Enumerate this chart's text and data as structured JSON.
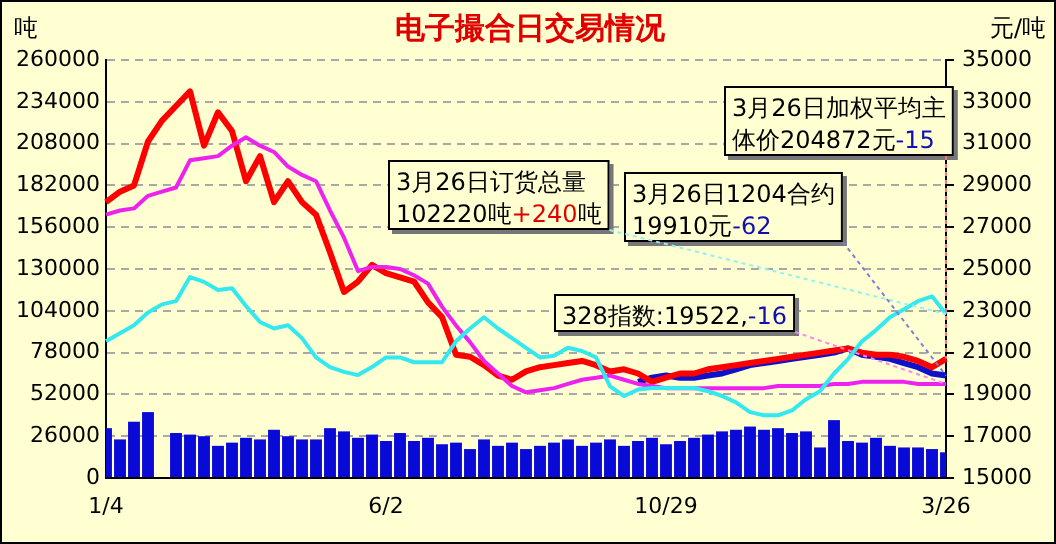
{
  "chart_data": {
    "type": "line",
    "title": "电子撮合日交易情况",
    "ylabel": "吨",
    "y2label": "元/吨",
    "categories": [
      "1/4",
      null,
      null,
      null,
      null,
      null,
      null,
      null,
      null,
      null,
      null,
      null,
      null,
      null,
      null,
      null,
      null,
      null,
      null,
      null,
      "6/2",
      null,
      null,
      null,
      null,
      null,
      null,
      null,
      null,
      null,
      null,
      null,
      null,
      null,
      null,
      null,
      null,
      null,
      null,
      null,
      "10/29",
      null,
      null,
      null,
      null,
      null,
      null,
      null,
      null,
      null,
      null,
      null,
      null,
      null,
      null,
      null,
      null,
      null,
      null,
      null,
      "3/26"
    ],
    "series": [
      {
        "type": "bar",
        "color": "#0a0ad8",
        "values": [
          31000,
          24000,
          35000,
          41000,
          null,
          28000,
          27000,
          26000,
          20000,
          22000,
          25000,
          24000,
          30000,
          26000,
          24000,
          24000,
          31000,
          29000,
          25000,
          27000,
          23000,
          28000,
          23000,
          25000,
          21000,
          22000,
          18000,
          24000,
          20000,
          22000,
          18000,
          20000,
          22000,
          24000,
          20000,
          22000,
          24000,
          20000,
          23000,
          25000,
          21000,
          23000,
          25000,
          27000,
          29000,
          30000,
          32000,
          30000,
          31000,
          28000,
          29000,
          19000,
          36000,
          23000,
          22000,
          25000,
          20000,
          19000,
          19000,
          18000,
          16000
        ]
      },
      {
        "color": "#33e8ee",
        "values": [
          85000,
          90000,
          95000,
          103000,
          108000,
          110000,
          125000,
          122000,
          117000,
          118000,
          107000,
          97000,
          93000,
          95000,
          87000,
          75000,
          69000,
          66000,
          64000,
          69000,
          75000,
          75000,
          72000,
          72000,
          72000,
          85000,
          93000,
          100000,
          93000,
          87000,
          81000,
          75000,
          76000,
          81000,
          79000,
          75000,
          57000,
          51000,
          55000,
          56000,
          56000,
          56000,
          56000,
          54000,
          51000,
          47000,
          41000,
          39000,
          39000,
          42000,
          49000,
          54000,
          65000,
          74000,
          85000,
          92000,
          100000,
          105000,
          110000,
          113000,
          102000
        ]
      },
      {
        "axis": "y2",
        "color": "#ee22ee",
        "values": [
          27600,
          27800,
          27900,
          28500,
          28700,
          28900,
          30200,
          30300,
          30400,
          30900,
          31300,
          30900,
          30600,
          29900,
          29500,
          29200,
          27800,
          26500,
          24900,
          25100,
          25100,
          25000,
          24700,
          24300,
          23200,
          22300,
          21500,
          20600,
          20000,
          19400,
          19100,
          19200,
          19300,
          19500,
          19700,
          19800,
          19900,
          19700,
          19500,
          19400,
          19300,
          19300,
          19300,
          19300,
          19300,
          19300,
          19300,
          19300,
          19400,
          19400,
          19400,
          19400,
          19500,
          19500,
          19600,
          19600,
          19600,
          19600,
          19500,
          19500,
          19500
        ]
      },
      {
        "axis": "y2",
        "color": "#ff0000",
        "values": [
          28200,
          28700,
          29000,
          31100,
          32100,
          32800,
          33500,
          30900,
          32500,
          31600,
          29200,
          30400,
          28200,
          29200,
          28200,
          27600,
          25800,
          23900,
          24400,
          25200,
          24800,
          24600,
          24400,
          23400,
          22700,
          20900,
          20800,
          20400,
          19900,
          19700,
          20100,
          20300,
          20400,
          20500,
          20600,
          20400,
          20100,
          20200,
          20000,
          19600,
          19800,
          20000,
          20000,
          20200,
          20300,
          20400,
          20500,
          20600,
          20700,
          20800,
          20900,
          21000,
          21100,
          21200,
          21000,
          20900,
          20900,
          20800,
          20600,
          20300,
          20700
        ]
      },
      {
        "axis": "y2",
        "color": "#1010c8",
        "values": [
          null,
          null,
          null,
          null,
          null,
          null,
          null,
          null,
          null,
          null,
          null,
          null,
          null,
          null,
          null,
          null,
          null,
          null,
          null,
          null,
          null,
          null,
          null,
          null,
          null,
          null,
          null,
          null,
          null,
          null,
          null,
          null,
          null,
          null,
          null,
          null,
          null,
          null,
          19600,
          19800,
          19900,
          19800,
          19800,
          19900,
          20000,
          20200,
          20400,
          20500,
          20600,
          20700,
          20800,
          20900,
          21000,
          21200,
          20900,
          20800,
          20700,
          20500,
          20300,
          20000,
          19900
        ]
      }
    ],
    "ylim": [
      0,
      260000
    ],
    "yticks": [
      0,
      26000,
      52000,
      78000,
      104000,
      130000,
      156000,
      182000,
      208000,
      234000,
      260000
    ],
    "y2lim": [
      15000,
      35000
    ],
    "y2ticks": [
      15000,
      17000,
      19000,
      21000,
      23000,
      25000,
      27000,
      29000,
      31000,
      33000,
      35000
    ],
    "grid": "y",
    "legend": false,
    "annotations": [
      {
        "text": "3月26日订货总量102220吨+240吨",
        "x": "3/26",
        "y": 102000
      },
      {
        "text": "3月26日1204合约19910元-62",
        "x": "3/26",
        "y": 63700
      },
      {
        "text": "3月26日加权平均主体价204872元-15",
        "x": "3/26",
        "y": 74100
      },
      {
        "text": "328指数:19522,-16",
        "x": "3/26",
        "y": 58500
      }
    ]
  }
}
